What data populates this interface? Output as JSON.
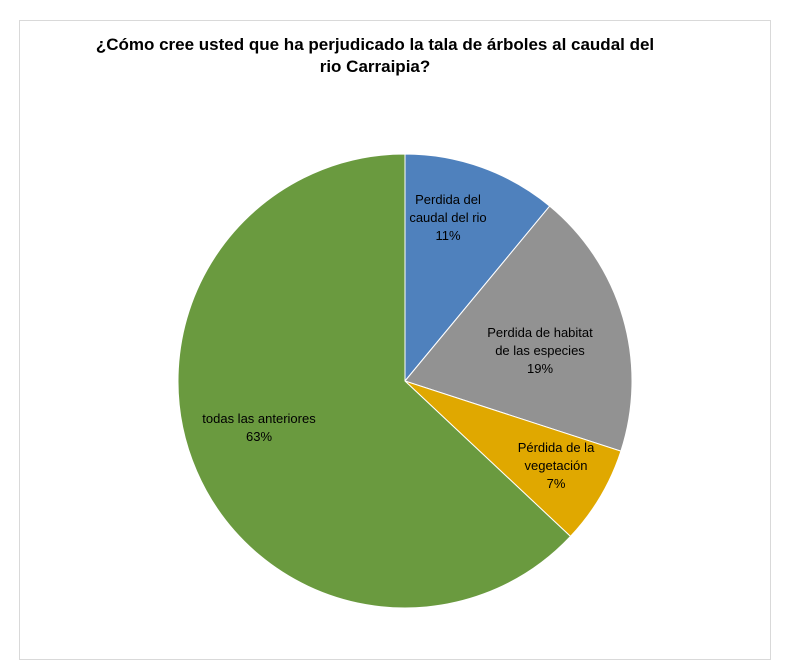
{
  "chart_data": {
    "type": "pie",
    "title_lines": [
      "¿Cómo cree usted que ha perjudicado la tala de árboles al caudal del",
      "rio Carraipia?"
    ],
    "slices": [
      {
        "label_lines": [
          "Perdida del",
          "caudal del rio"
        ],
        "percent_label": "11%",
        "value": 11,
        "color": "#4f81bd"
      },
      {
        "label_lines": [
          "Perdida de habitat",
          "de las especies"
        ],
        "percent_label": "19%",
        "value": 19,
        "color": "#929292"
      },
      {
        "label_lines": [
          "Pérdida de la",
          "vegetación"
        ],
        "percent_label": "7%",
        "value": 7,
        "color": "#e0a800"
      },
      {
        "label_lines": [
          "todas las anteriores"
        ],
        "percent_label": "63%",
        "value": 63,
        "color": "#6a9a3f"
      }
    ],
    "legend": "none",
    "start_angle": "12 o'clock, clockwise"
  }
}
